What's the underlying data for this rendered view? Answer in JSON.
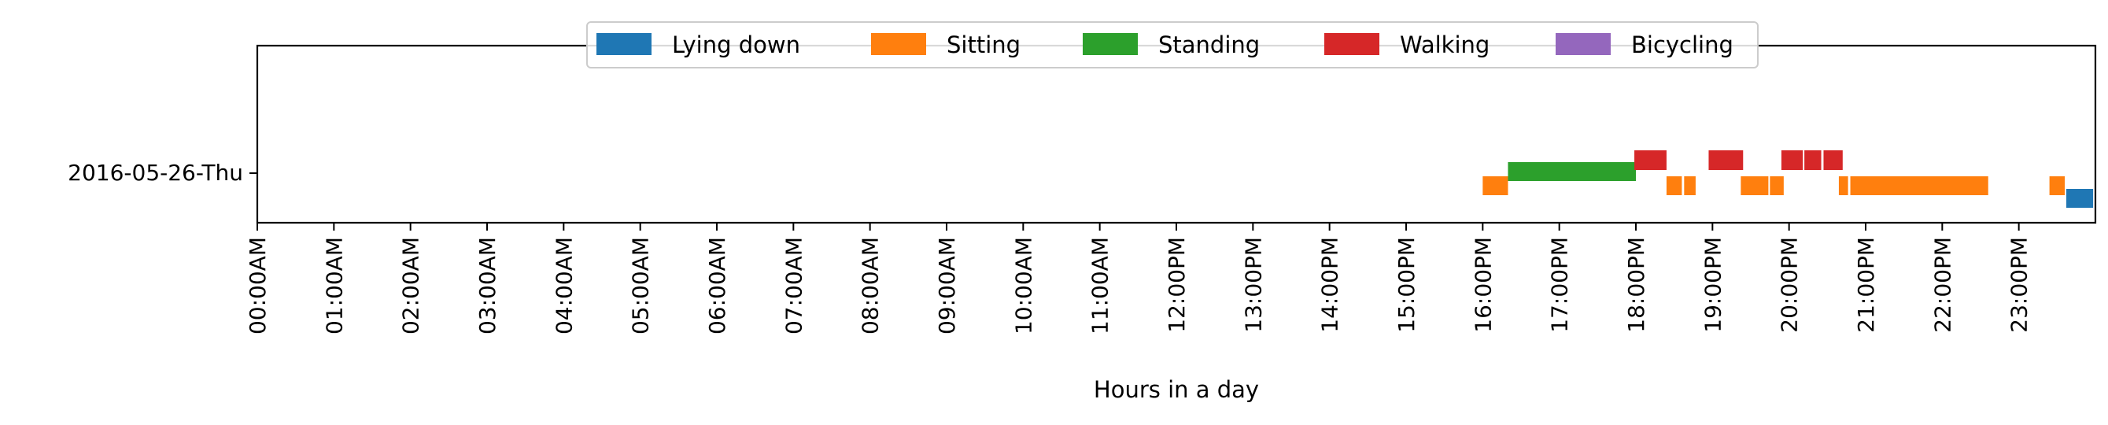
{
  "chart_data": {
    "type": "timeline",
    "xlabel": "Hours in a day",
    "x_range_hours": [
      0,
      24
    ],
    "row_label": "2016-05-26-Thu",
    "x_tick_labels": [
      "00:00AM",
      "01:00AM",
      "02:00AM",
      "03:00AM",
      "04:00AM",
      "05:00AM",
      "06:00AM",
      "07:00AM",
      "08:00AM",
      "09:00AM",
      "10:00AM",
      "11:00AM",
      "12:00PM",
      "13:00PM",
      "14:00PM",
      "15:00PM",
      "16:00PM",
      "17:00PM",
      "18:00PM",
      "19:00PM",
      "20:00PM",
      "21:00PM",
      "22:00PM",
      "23:00PM"
    ],
    "legend_position": "top-center",
    "legend": [
      {
        "name": "Lying down",
        "color": "#1f77b4"
      },
      {
        "name": "Sitting",
        "color": "#ff7f0e"
      },
      {
        "name": "Standing",
        "color": "#2ca02c"
      },
      {
        "name": "Walking",
        "color": "#d62728"
      },
      {
        "name": "Bicycling",
        "color": "#9467bd"
      }
    ],
    "series": [
      {
        "name": "Lying down",
        "level": "bottom",
        "intervals": [
          [
            23.62,
            23.97
          ]
        ]
      },
      {
        "name": "Sitting",
        "level": "low",
        "intervals": [
          [
            16.0,
            16.33
          ],
          [
            18.4,
            18.6
          ],
          [
            18.63,
            18.78
          ],
          [
            19.37,
            19.73
          ],
          [
            19.75,
            19.93
          ],
          [
            20.65,
            20.77
          ],
          [
            20.8,
            22.6
          ],
          [
            23.4,
            23.6
          ]
        ]
      },
      {
        "name": "Standing",
        "level": "mid",
        "intervals": [
          [
            16.33,
            18.0
          ]
        ]
      },
      {
        "name": "Walking",
        "level": "high",
        "intervals": [
          [
            17.98,
            18.4
          ],
          [
            18.95,
            19.4
          ],
          [
            19.9,
            20.18
          ],
          [
            20.2,
            20.42
          ],
          [
            20.45,
            20.7
          ]
        ]
      },
      {
        "name": "Bicycling",
        "level": "mid",
        "intervals": []
      }
    ]
  }
}
